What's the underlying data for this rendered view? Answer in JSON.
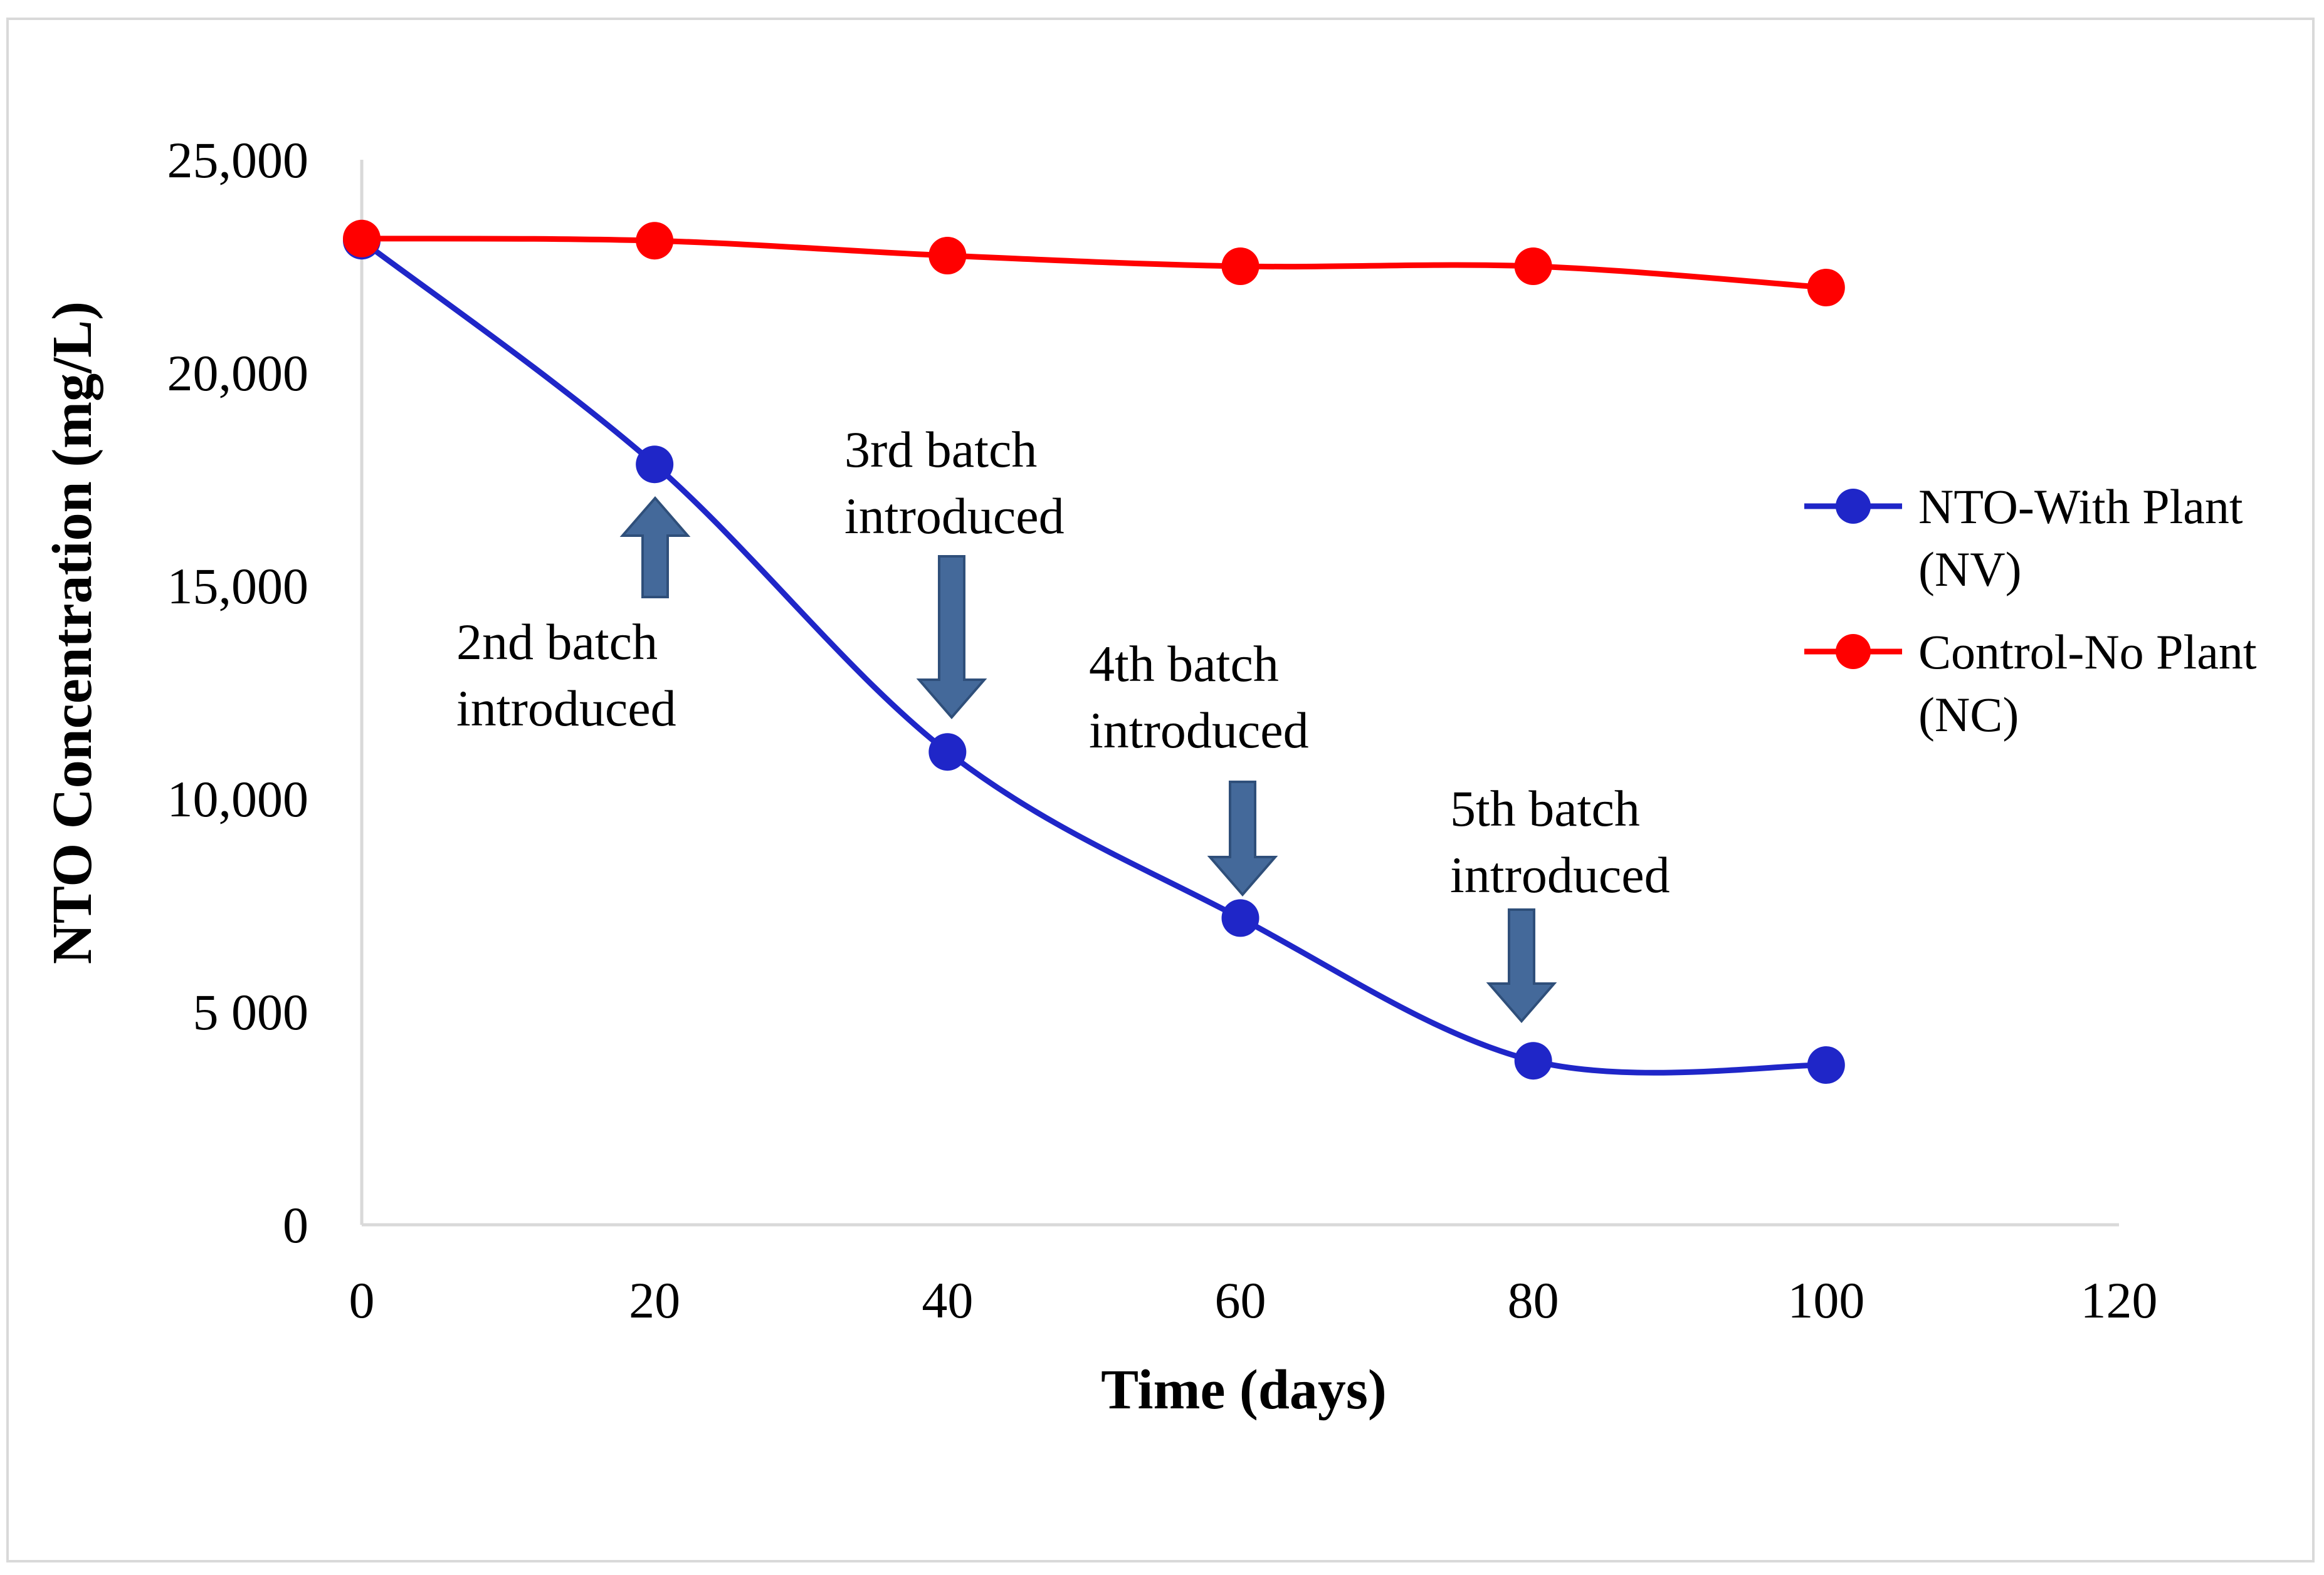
{
  "chart_data": {
    "type": "line",
    "xlabel": "Time (days)",
    "ylabel": "NTO Concentration (mg/L)",
    "xlim": [
      0,
      120
    ],
    "ylim": [
      0,
      25000
    ],
    "x_ticks": [
      "0",
      "20",
      "40",
      "60",
      "80",
      "100",
      "120"
    ],
    "y_ticks": [
      "0",
      "5 000",
      "10,000",
      "15,000",
      "20,000",
      "25,000"
    ],
    "x_tick_values": [
      0,
      20,
      40,
      60,
      80,
      100,
      120
    ],
    "y_tick_values": [
      0,
      5000,
      10000,
      15000,
      20000,
      25000
    ],
    "grid": false,
    "legend_position": "right",
    "series": [
      {
        "name": "NTO-With Plant (NV)",
        "legend_lines": [
          "NTO-With Plant",
          "(NV)"
        ],
        "color": "#1f26c8",
        "x": [
          0,
          20,
          40,
          60,
          80,
          100
        ],
        "y": [
          23100,
          17850,
          11100,
          7200,
          3850,
          3750
        ]
      },
      {
        "name": "Control-No Plant (NC)",
        "legend_lines": [
          "Control-No Plant",
          "(NC)"
        ],
        "color": "#ff0000",
        "x": [
          0,
          20,
          40,
          60,
          80,
          100
        ],
        "y": [
          23150,
          23100,
          22750,
          22500,
          22500,
          22000
        ]
      }
    ],
    "annotations": [
      {
        "lines": [
          "2nd batch",
          "introduced"
        ],
        "arrow": "up",
        "x": 20
      },
      {
        "lines": [
          "3rd batch",
          "introduced"
        ],
        "arrow": "down",
        "x": 40
      },
      {
        "lines": [
          "4th batch",
          "introduced"
        ],
        "arrow": "down",
        "x": 60
      },
      {
        "lines": [
          "5th batch",
          "introduced"
        ],
        "arrow": "down",
        "x": 80
      }
    ],
    "arrow_color": "#44699a"
  }
}
